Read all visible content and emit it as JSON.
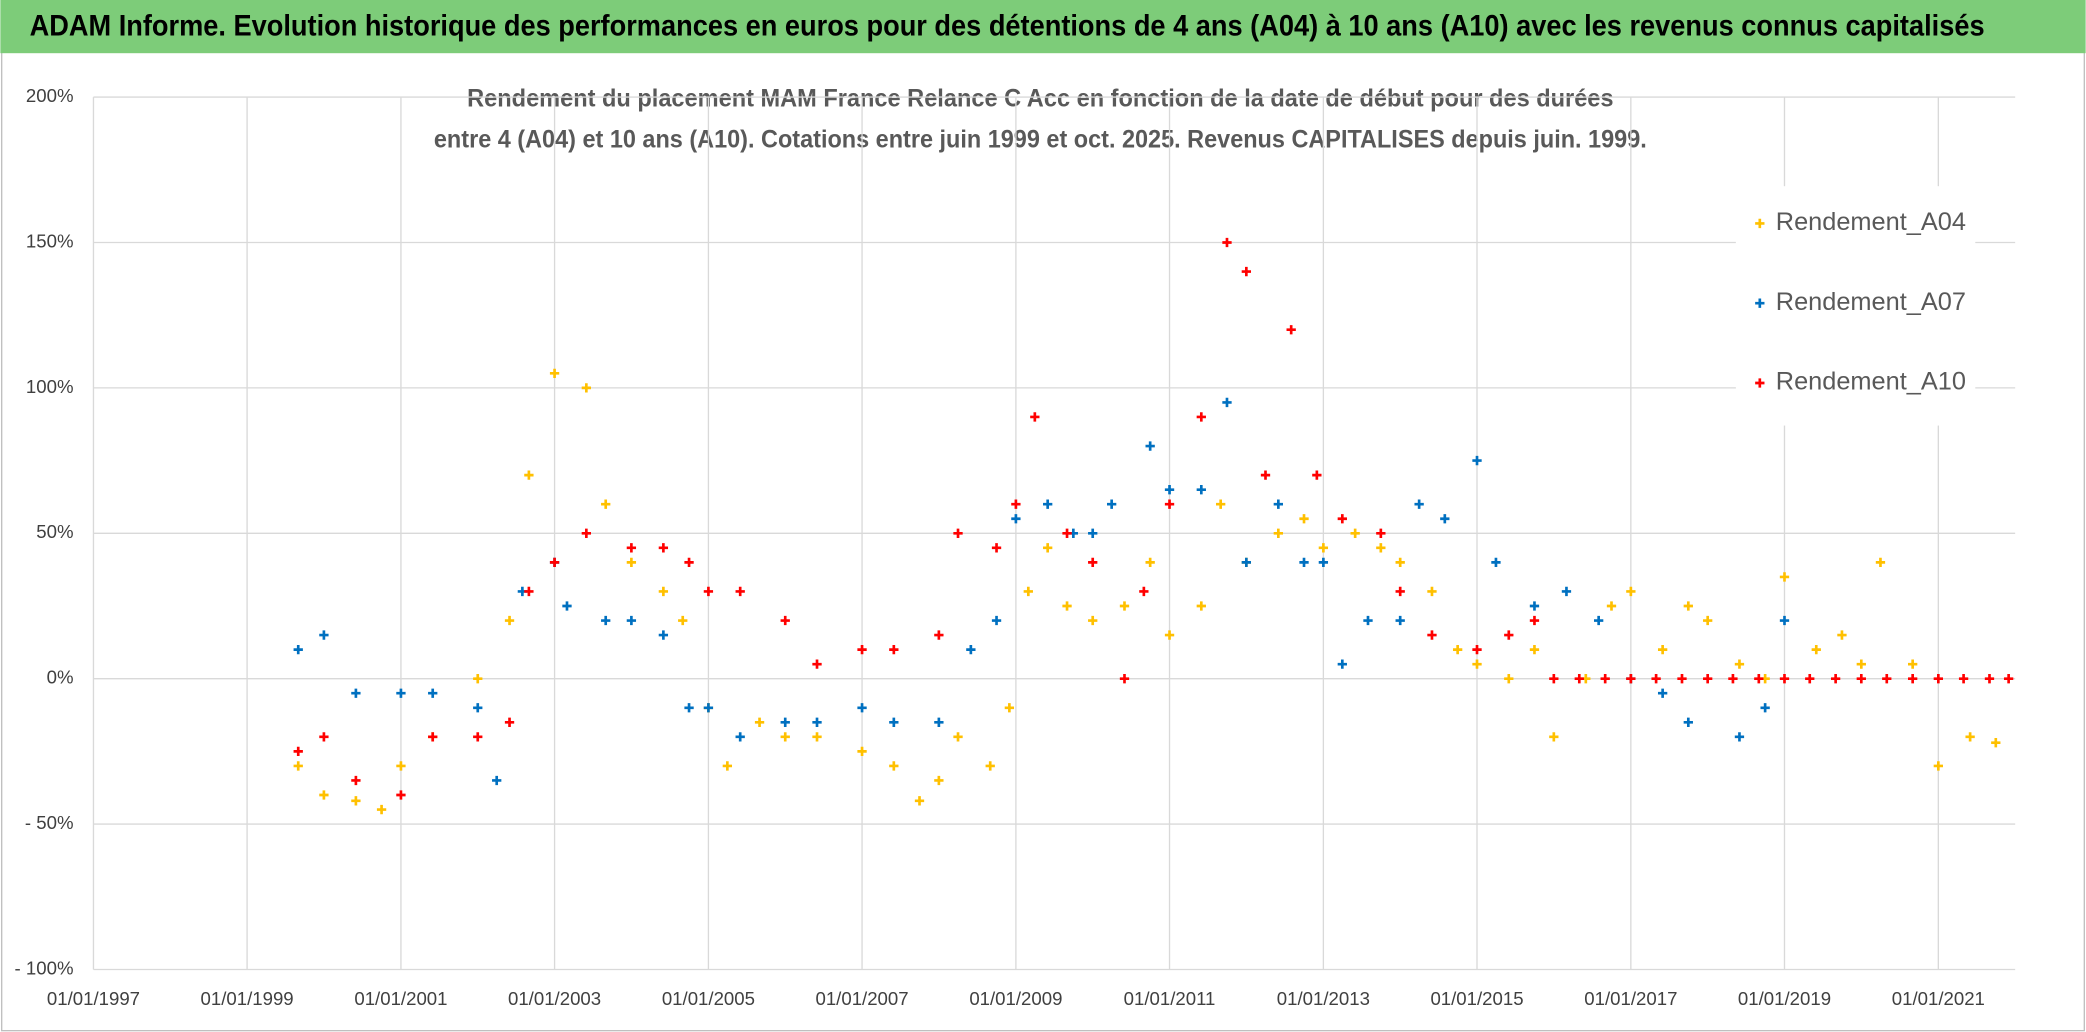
{
  "chart_data": {
    "type": "scatter",
    "title": "ADAM Informe. Evolution historique des performances en euros pour des détentions de 4 ans (A04) à 10 ans (A10) avec les revenus connus capitalisés",
    "subtitle": [
      "Rendement du placement MAM France Relance C Acc en fonction de la date de début pour des durées",
      "entre 4 (A04) et 10 ans (A10). Cotations entre juin 1999 et oct. 2025. Revenus CAPITALISES depuis juin. 1999."
    ],
    "xlim": [
      "1997-01-01",
      "2022-01-01"
    ],
    "xticks": [
      {
        "value": "1997-01-01",
        "label": "01/01/1997"
      },
      {
        "value": "1999-01-01",
        "label": "01/01/1999"
      },
      {
        "value": "2001-01-01",
        "label": "01/01/2001"
      },
      {
        "value": "2003-01-01",
        "label": "01/01/2003"
      },
      {
        "value": "2005-01-01",
        "label": "01/01/2005"
      },
      {
        "value": "2007-01-01",
        "label": "01/01/2007"
      },
      {
        "value": "2009-01-01",
        "label": "01/01/2009"
      },
      {
        "value": "2011-01-01",
        "label": "01/01/2011"
      },
      {
        "value": "2013-01-01",
        "label": "01/01/2013"
      },
      {
        "value": "2015-01-01",
        "label": "01/01/2015"
      },
      {
        "value": "2017-01-01",
        "label": "01/01/2017"
      },
      {
        "value": "2019-01-01",
        "label": "01/01/2019"
      },
      {
        "value": "2021-01-01",
        "label": "01/01/2021"
      }
    ],
    "ylim": [
      -100,
      200
    ],
    "yticks": [
      {
        "value": 200,
        "label": "200%"
      },
      {
        "value": 150,
        "label": "150%"
      },
      {
        "value": 100,
        "label": "100%"
      },
      {
        "value": 50,
        "label": "50%"
      },
      {
        "value": 0,
        "label": "0%"
      },
      {
        "value": -50,
        "label": "- 50%"
      },
      {
        "value": -100,
        "label": "- 100%"
      }
    ],
    "grid": true,
    "legend": "right",
    "series": [
      {
        "name": "Rendement_A04",
        "color": "#ffc000",
        "x": [
          "1999-09-01",
          "2000-01-01",
          "2000-06-01",
          "2000-10-01",
          "2001-01-01",
          "2001-06-01",
          "2002-01-01",
          "2002-06-01",
          "2002-09-01",
          "2003-01-01",
          "2003-06-01",
          "2003-09-01",
          "2004-01-01",
          "2004-06-01",
          "2004-09-01",
          "2005-01-01",
          "2005-04-01",
          "2005-09-01",
          "2006-01-01",
          "2006-06-01",
          "2007-01-01",
          "2007-06-01",
          "2007-10-01",
          "2008-01-01",
          "2008-04-01",
          "2008-09-01",
          "2008-12-01",
          "2009-03-01",
          "2009-06-01",
          "2009-09-01",
          "2010-01-01",
          "2010-06-01",
          "2010-10-01",
          "2011-01-01",
          "2011-06-01",
          "2011-09-01",
          "2012-01-01",
          "2012-06-01",
          "2012-10-01",
          "2013-01-01",
          "2013-06-01",
          "2013-10-01",
          "2014-01-01",
          "2014-06-01",
          "2014-10-01",
          "2015-01-01",
          "2015-06-01",
          "2015-10-01",
          "2016-01-01",
          "2016-06-01",
          "2016-10-01",
          "2017-01-01",
          "2017-06-01",
          "2017-10-01",
          "2018-01-01",
          "2018-06-01",
          "2018-10-01",
          "2019-01-01",
          "2019-06-01",
          "2019-10-01",
          "2020-01-01",
          "2020-04-01",
          "2020-09-01",
          "2021-01-01",
          "2021-06-01",
          "2021-10-01"
        ],
        "values": [
          -30,
          -40,
          -42,
          -45,
          -30,
          -20,
          0,
          20,
          70,
          105,
          100,
          60,
          40,
          30,
          20,
          -10,
          -30,
          -15,
          -20,
          -20,
          -25,
          -30,
          -42,
          -35,
          -20,
          -30,
          -10,
          30,
          45,
          25,
          20,
          25,
          40,
          15,
          25,
          60,
          40,
          50,
          55,
          45,
          50,
          45,
          40,
          30,
          10,
          5,
          0,
          10,
          -20,
          0,
          25,
          30,
          10,
          25,
          20,
          5,
          0,
          35,
          10,
          15,
          5,
          40,
          5,
          -30,
          -20,
          -22
        ]
      },
      {
        "name": "Rendement_A07",
        "color": "#0070c0",
        "x": [
          "1999-09-01",
          "2000-01-01",
          "2000-06-01",
          "2001-01-01",
          "2001-06-01",
          "2002-01-01",
          "2002-04-01",
          "2002-08-01",
          "2003-01-01",
          "2003-03-01",
          "2003-09-01",
          "2004-01-01",
          "2004-06-01",
          "2004-10-01",
          "2005-01-01",
          "2005-06-01",
          "2006-01-01",
          "2006-06-01",
          "2007-01-01",
          "2007-06-01",
          "2008-01-01",
          "2008-06-01",
          "2008-10-01",
          "2009-01-01",
          "2009-06-01",
          "2009-10-01",
          "2010-01-01",
          "2010-04-01",
          "2010-10-01",
          "2011-01-01",
          "2011-06-01",
          "2011-10-01",
          "2012-01-01",
          "2012-06-01",
          "2012-10-01",
          "2013-01-01",
          "2013-04-01",
          "2013-08-01",
          "2014-01-01",
          "2014-04-01",
          "2014-08-01",
          "2015-01-01",
          "2015-04-01",
          "2015-10-01",
          "2016-03-01",
          "2016-08-01",
          "2017-01-01",
          "2017-06-01",
          "2017-10-01",
          "2018-06-01",
          "2018-10-01",
          "2019-01-01"
        ],
        "values": [
          10,
          15,
          -5,
          -5,
          -5,
          -10,
          -35,
          30,
          40,
          25,
          20,
          20,
          15,
          -10,
          -10,
          -20,
          -15,
          -15,
          -10,
          -15,
          -15,
          10,
          20,
          55,
          60,
          50,
          50,
          60,
          80,
          65,
          65,
          95,
          40,
          60,
          40,
          40,
          5,
          20,
          20,
          60,
          55,
          75,
          40,
          25,
          30,
          20,
          0,
          -5,
          -15,
          -20,
          -10,
          20
        ]
      },
      {
        "name": "Rendement_A10",
        "color": "#ff0000",
        "x": [
          "1999-09-01",
          "2000-01-01",
          "2000-06-01",
          "2001-01-01",
          "2001-06-01",
          "2002-01-01",
          "2002-06-01",
          "2002-09-01",
          "2003-01-01",
          "2003-06-01",
          "2004-01-01",
          "2004-06-01",
          "2004-10-01",
          "2005-01-01",
          "2005-06-01",
          "2006-01-01",
          "2006-06-01",
          "2007-01-01",
          "2007-06-01",
          "2008-01-01",
          "2008-04-01",
          "2008-10-01",
          "2009-01-01",
          "2009-04-01",
          "2009-09-01",
          "2010-01-01",
          "2010-06-01",
          "2010-09-01",
          "2011-01-01",
          "2011-06-01",
          "2011-10-01",
          "2012-01-01",
          "2012-04-01",
          "2012-08-01",
          "2012-12-01",
          "2013-04-01",
          "2013-10-01",
          "2014-01-01",
          "2014-06-01",
          "2015-01-01",
          "2015-06-01",
          "2015-10-01",
          "2016-01-01",
          "2016-05-01",
          "2016-09-01",
          "2017-01-01",
          "2017-05-01",
          "2017-09-01",
          "2018-01-01",
          "2018-05-01",
          "2018-09-01",
          "2019-01-01",
          "2019-05-01",
          "2019-09-01",
          "2020-01-01",
          "2020-05-01",
          "2020-09-01",
          "2021-01-01",
          "2021-05-01",
          "2021-09-01",
          "2021-12-01"
        ],
        "values": [
          -25,
          -20,
          -35,
          -40,
          -20,
          -20,
          -15,
          30,
          40,
          50,
          45,
          45,
          40,
          30,
          30,
          20,
          5,
          10,
          10,
          15,
          50,
          45,
          60,
          90,
          50,
          40,
          0,
          30,
          60,
          90,
          150,
          140,
          70,
          120,
          70,
          55,
          50,
          30,
          15,
          10,
          15,
          20,
          0,
          0,
          0,
          0,
          0,
          0,
          0,
          0,
          0,
          0,
          0,
          0,
          0,
          0,
          0,
          0,
          0,
          0,
          0
        ]
      }
    ]
  }
}
